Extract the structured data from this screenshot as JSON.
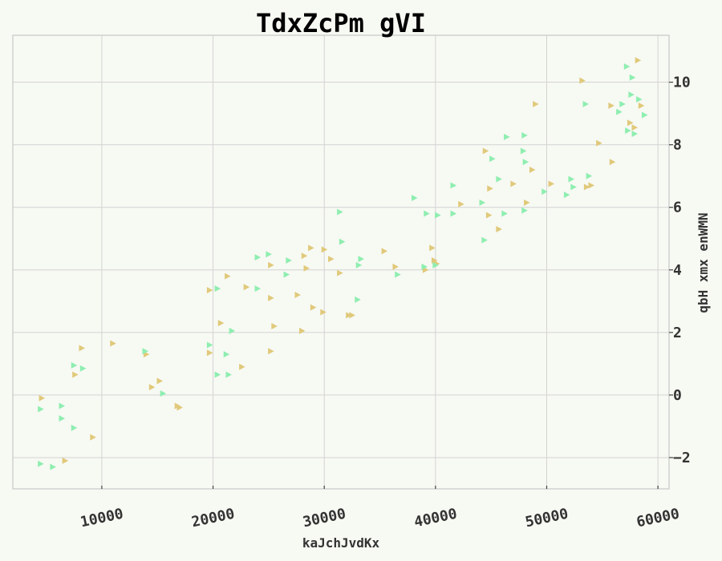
{
  "chart_data": {
    "type": "scatter",
    "title": "TdxZcPm gVI",
    "xlabel": "kaJchJvdKx",
    "ylabel": "qbH xmx enWMN",
    "xlim": [
      2000,
      61000
    ],
    "ylim": [
      -3,
      11.5
    ],
    "x_ticks": [
      10000,
      20000,
      30000,
      40000,
      50000,
      60000
    ],
    "y_ticks": [
      -2,
      0,
      2,
      4,
      6,
      8,
      10
    ],
    "y_axis_position": "right",
    "grid": true,
    "marker": "triangle-right",
    "series": [
      {
        "color": "#e0c97a",
        "points": [
          [
            4600,
            -0.1
          ],
          [
            6700,
            -2.1
          ],
          [
            7600,
            0.65
          ],
          [
            8200,
            1.5
          ],
          [
            9200,
            -1.35
          ],
          [
            11000,
            1.65
          ],
          [
            14000,
            1.3
          ],
          [
            14500,
            0.25
          ],
          [
            15200,
            0.45
          ],
          [
            16800,
            -0.35
          ],
          [
            17000,
            -0.4
          ],
          [
            19700,
            3.35
          ],
          [
            19700,
            1.35
          ],
          [
            20700,
            2.3
          ],
          [
            21300,
            3.8
          ],
          [
            22600,
            0.9
          ],
          [
            23000,
            3.45
          ],
          [
            25200,
            3.1
          ],
          [
            25200,
            1.4
          ],
          [
            25500,
            2.2
          ],
          [
            25200,
            4.15
          ],
          [
            27600,
            3.2
          ],
          [
            28000,
            2.05
          ],
          [
            28200,
            4.45
          ],
          [
            28400,
            4.05
          ],
          [
            28800,
            4.7
          ],
          [
            29000,
            2.8
          ],
          [
            29900,
            2.65
          ],
          [
            30000,
            4.65
          ],
          [
            30600,
            4.35
          ],
          [
            31400,
            3.9
          ],
          [
            32200,
            2.55
          ],
          [
            32500,
            2.55
          ],
          [
            35400,
            4.6
          ],
          [
            36400,
            4.1
          ],
          [
            39100,
            4.0
          ],
          [
            39700,
            4.7
          ],
          [
            39900,
            4.3
          ],
          [
            40100,
            4.2
          ],
          [
            42300,
            6.1
          ],
          [
            44500,
            7.8
          ],
          [
            44800,
            5.75
          ],
          [
            44900,
            6.6
          ],
          [
            45700,
            5.3
          ],
          [
            47000,
            6.75
          ],
          [
            48200,
            6.15
          ],
          [
            48700,
            7.2
          ],
          [
            49000,
            9.3
          ],
          [
            50400,
            6.75
          ],
          [
            53200,
            10.05
          ],
          [
            53600,
            6.65
          ],
          [
            54000,
            6.7
          ],
          [
            54700,
            8.05
          ],
          [
            55900,
            7.45
          ],
          [
            55800,
            9.25
          ],
          [
            57500,
            8.7
          ],
          [
            57900,
            8.55
          ],
          [
            58500,
            9.25
          ],
          [
            58200,
            10.7
          ]
        ]
      },
      {
        "color": "#8eeeb0",
        "points": [
          [
            4500,
            -0.45
          ],
          [
            4500,
            -2.2
          ],
          [
            5600,
            -2.3
          ],
          [
            6400,
            -0.35
          ],
          [
            6400,
            -0.75
          ],
          [
            7500,
            0.95
          ],
          [
            7500,
            -1.05
          ],
          [
            8300,
            0.85
          ],
          [
            13900,
            1.4
          ],
          [
            15500,
            0.05
          ],
          [
            19700,
            1.6
          ],
          [
            20400,
            3.4
          ],
          [
            20400,
            0.65
          ],
          [
            21400,
            0.65
          ],
          [
            21200,
            1.3
          ],
          [
            21700,
            2.05
          ],
          [
            24000,
            4.4
          ],
          [
            24000,
            3.4
          ],
          [
            25000,
            4.5
          ],
          [
            26600,
            3.85
          ],
          [
            26800,
            4.3
          ],
          [
            31400,
            5.85
          ],
          [
            31600,
            4.9
          ],
          [
            33000,
            3.05
          ],
          [
            33100,
            4.15
          ],
          [
            33300,
            4.35
          ],
          [
            36600,
            3.85
          ],
          [
            38100,
            6.3
          ],
          [
            39000,
            4.1
          ],
          [
            39200,
            5.8
          ],
          [
            40000,
            4.15
          ],
          [
            40200,
            5.75
          ],
          [
            41600,
            6.7
          ],
          [
            41600,
            5.8
          ],
          [
            44200,
            6.15
          ],
          [
            44400,
            4.95
          ],
          [
            45100,
            7.55
          ],
          [
            45700,
            6.9
          ],
          [
            46200,
            5.8
          ],
          [
            46400,
            8.25
          ],
          [
            47900,
            7.8
          ],
          [
            48000,
            8.3
          ],
          [
            48000,
            5.9
          ],
          [
            48100,
            7.45
          ],
          [
            49800,
            6.5
          ],
          [
            51800,
            6.4
          ],
          [
            52200,
            6.9
          ],
          [
            52400,
            6.65
          ],
          [
            53500,
            9.3
          ],
          [
            53800,
            7.0
          ],
          [
            56500,
            9.05
          ],
          [
            56800,
            9.3
          ],
          [
            57300,
            8.45
          ],
          [
            57200,
            10.5
          ],
          [
            57600,
            9.6
          ],
          [
            57900,
            8.35
          ],
          [
            57700,
            10.15
          ],
          [
            58300,
            9.45
          ],
          [
            58800,
            8.95
          ]
        ]
      }
    ]
  }
}
